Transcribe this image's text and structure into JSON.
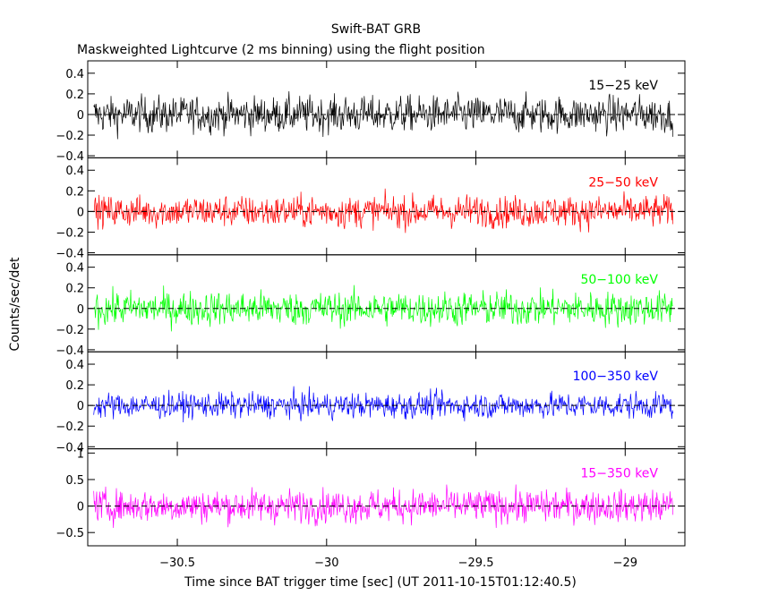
{
  "chart_data": {
    "type": "line",
    "title": "Swift-BAT GRB",
    "subtitle": "Maskweighted Lightcurve (2 ms binning) using the flight position",
    "xlabel": "Time since BAT trigger time [sec] (UT 2011-10-15T01:12:40.5)",
    "ylabel": "Counts/sec/det",
    "xlim": [
      -30.8,
      -28.8
    ],
    "xticks": [
      -30.5,
      -30,
      -29.5,
      -29
    ],
    "xtick_labels": [
      "−30.5",
      "−30",
      "−29.5",
      "−29"
    ],
    "baseline_style": "dashed",
    "series": [
      {
        "name": "15−25 keV",
        "color": "#000000",
        "ylim": [
          -0.42,
          0.52
        ],
        "yticks": [
          -0.4,
          -0.2,
          0,
          0.2,
          0.4
        ],
        "ytick_labels": [
          "−0.4",
          "−0.2",
          "0",
          "0.2",
          "0.4"
        ],
        "x_start": -30.78,
        "x_end": -28.84,
        "bin": 0.002,
        "noise_amplitude": 0.17
      },
      {
        "name": "25−50 keV",
        "color": "#ff0000",
        "ylim": [
          -0.42,
          0.52
        ],
        "yticks": [
          -0.4,
          -0.2,
          0,
          0.2,
          0.4
        ],
        "ytick_labels": [
          "−0.4",
          "−0.2",
          "0",
          "0.2",
          "0.4"
        ],
        "x_start": -30.78,
        "x_end": -28.84,
        "bin": 0.002,
        "noise_amplitude": 0.15
      },
      {
        "name": "50−100 keV",
        "color": "#00ff00",
        "ylim": [
          -0.42,
          0.52
        ],
        "yticks": [
          -0.4,
          -0.2,
          0,
          0.2,
          0.4
        ],
        "ytick_labels": [
          "−0.4",
          "−0.2",
          "0",
          "0.2",
          "0.4"
        ],
        "x_start": -30.78,
        "x_end": -28.84,
        "bin": 0.002,
        "noise_amplitude": 0.16
      },
      {
        "name": "100−350 keV",
        "color": "#0000ff",
        "ylim": [
          -0.42,
          0.52
        ],
        "yticks": [
          -0.4,
          -0.2,
          0,
          0.2,
          0.4
        ],
        "ytick_labels": [
          "−0.4",
          "−0.2",
          "0",
          "0.2",
          "0.4"
        ],
        "x_start": -30.78,
        "x_end": -28.84,
        "bin": 0.002,
        "noise_amplitude": 0.12
      },
      {
        "name": "15−350 keV",
        "color": "#ff00ff",
        "ylim": [
          -0.75,
          1.08
        ],
        "yticks": [
          -0.5,
          0,
          0.5,
          1
        ],
        "ytick_labels": [
          "−0.5",
          "0",
          "0.5",
          "1"
        ],
        "x_start": -30.78,
        "x_end": -28.84,
        "bin": 0.002,
        "noise_amplitude": 0.3
      }
    ]
  }
}
